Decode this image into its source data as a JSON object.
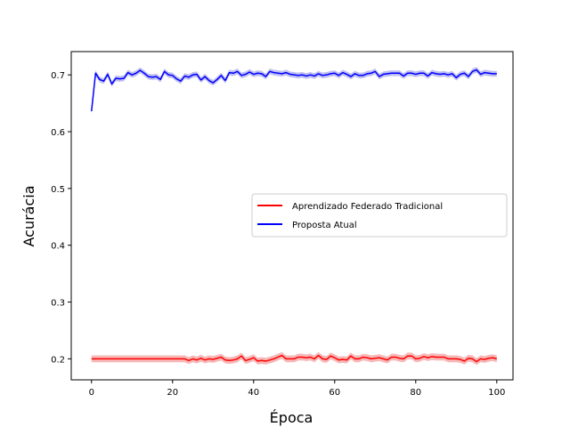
{
  "chart_data": {
    "type": "line",
    "xlabel": "Época",
    "ylabel": "Acurácia",
    "xlim": [
      -5,
      104
    ],
    "ylim": [
      0.163,
      0.741
    ],
    "xticks": [
      0,
      20,
      40,
      60,
      80,
      100
    ],
    "yticks": [
      0.2,
      0.3,
      0.4,
      0.5,
      0.6,
      0.7
    ],
    "grid": false,
    "legend_position": "center-right",
    "series": [
      {
        "name": "Aprendizado Federado Tradicional",
        "color": "#ff0000",
        "band_color": "#f4a0a0",
        "band": 0.006,
        "values": [
          0.2,
          0.2,
          0.2,
          0.2,
          0.2,
          0.2,
          0.2,
          0.2,
          0.2,
          0.2,
          0.2,
          0.2,
          0.2,
          0.2,
          0.2,
          0.2,
          0.2,
          0.2,
          0.2,
          0.2,
          0.2,
          0.2,
          0.2,
          0.2,
          0.197,
          0.2,
          0.198,
          0.201,
          0.198,
          0.2,
          0.199,
          0.201,
          0.203,
          0.198,
          0.197,
          0.198,
          0.2,
          0.205,
          0.197,
          0.199,
          0.202,
          0.196,
          0.197,
          0.196,
          0.198,
          0.2,
          0.203,
          0.206,
          0.2,
          0.2,
          0.2,
          0.203,
          0.203,
          0.202,
          0.203,
          0.2,
          0.206,
          0.2,
          0.199,
          0.205,
          0.202,
          0.198,
          0.199,
          0.198,
          0.205,
          0.2,
          0.2,
          0.203,
          0.202,
          0.2,
          0.201,
          0.202,
          0.2,
          0.198,
          0.203,
          0.203,
          0.201,
          0.2,
          0.205,
          0.205,
          0.2,
          0.201,
          0.204,
          0.202,
          0.204,
          0.203,
          0.203,
          0.203,
          0.2,
          0.2,
          0.2,
          0.199,
          0.196,
          0.201,
          0.2,
          0.195,
          0.2,
          0.199,
          0.201,
          0.202,
          0.2
        ]
      },
      {
        "name": "Proposta Atual",
        "color": "#0000ff",
        "band_color": "#a8a8ee",
        "band": 0.005,
        "values": [
          0.636,
          0.703,
          0.692,
          0.689,
          0.701,
          0.684,
          0.694,
          0.693,
          0.694,
          0.704,
          0.7,
          0.703,
          0.708,
          0.703,
          0.697,
          0.696,
          0.697,
          0.692,
          0.706,
          0.7,
          0.699,
          0.693,
          0.689,
          0.698,
          0.696,
          0.7,
          0.701,
          0.691,
          0.697,
          0.69,
          0.686,
          0.692,
          0.699,
          0.69,
          0.704,
          0.703,
          0.706,
          0.699,
          0.701,
          0.705,
          0.701,
          0.703,
          0.702,
          0.697,
          0.706,
          0.704,
          0.703,
          0.702,
          0.704,
          0.701,
          0.7,
          0.699,
          0.7,
          0.698,
          0.7,
          0.698,
          0.702,
          0.699,
          0.7,
          0.702,
          0.703,
          0.699,
          0.704,
          0.701,
          0.697,
          0.702,
          0.699,
          0.699,
          0.702,
          0.703,
          0.706,
          0.697,
          0.701,
          0.702,
          0.703,
          0.703,
          0.703,
          0.698,
          0.703,
          0.703,
          0.701,
          0.703,
          0.703,
          0.698,
          0.704,
          0.702,
          0.701,
          0.702,
          0.7,
          0.702,
          0.695,
          0.701,
          0.703,
          0.697,
          0.706,
          0.709,
          0.701,
          0.704,
          0.703,
          0.702,
          0.702
        ]
      }
    ]
  }
}
